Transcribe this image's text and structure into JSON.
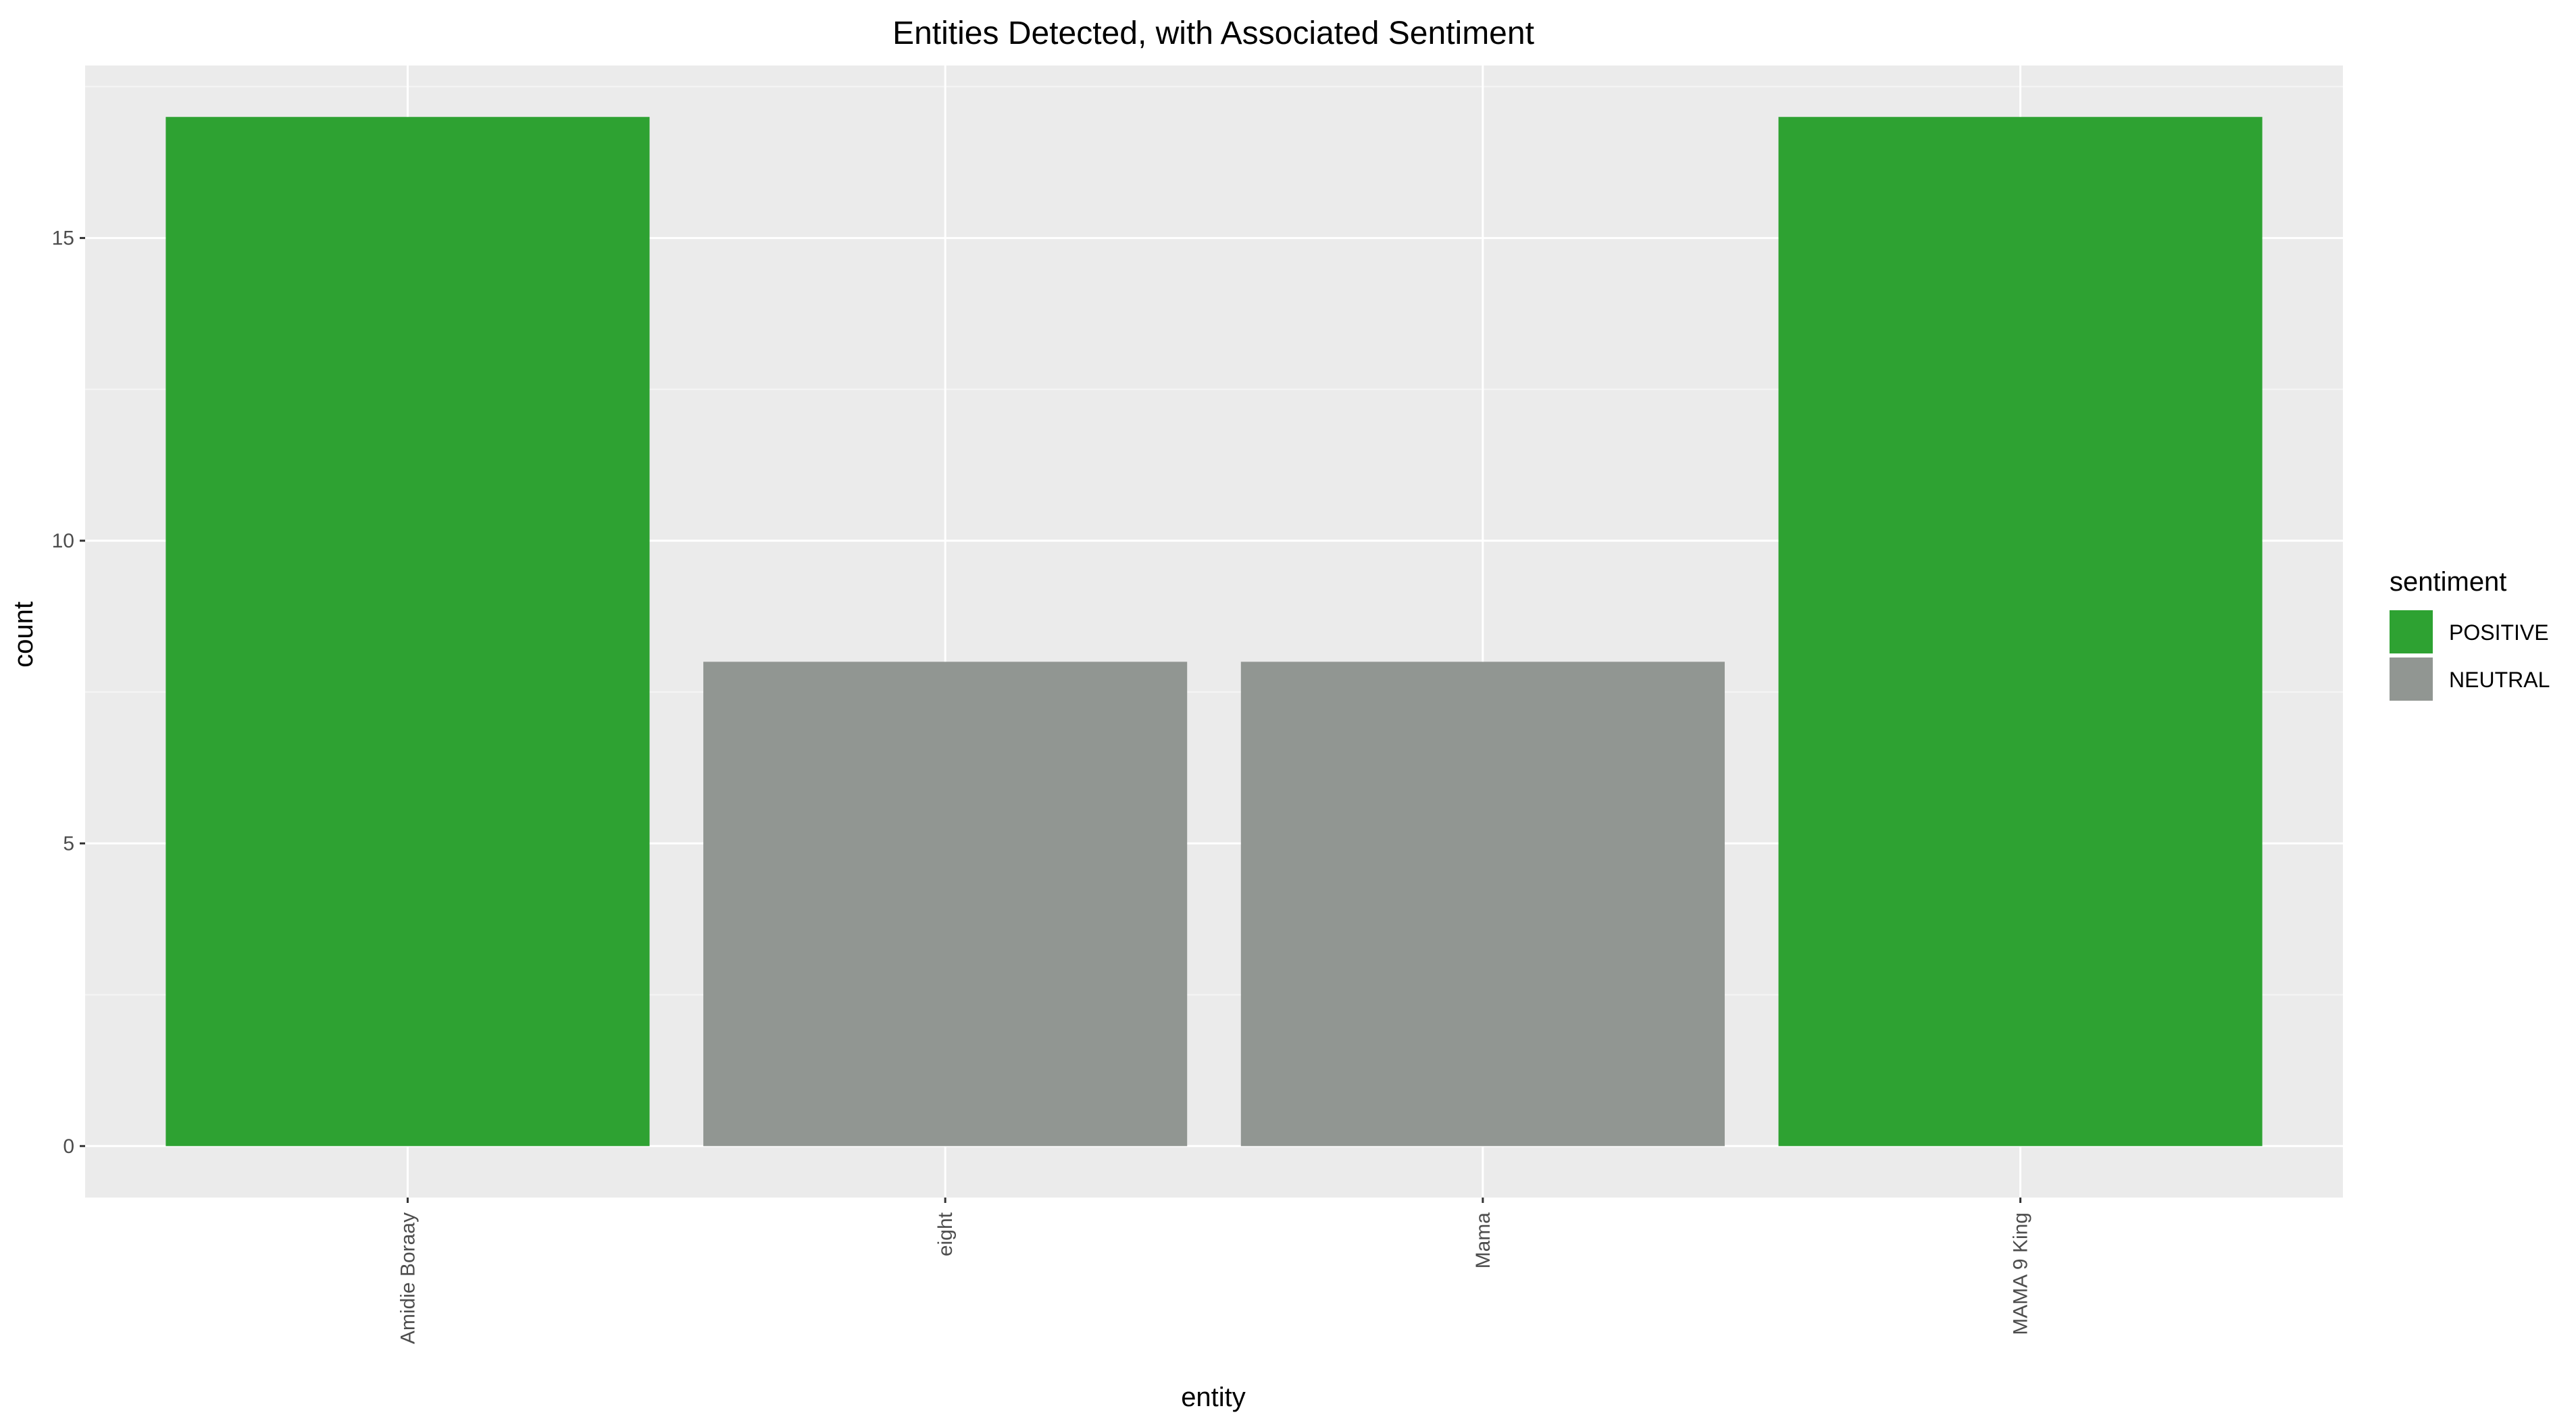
{
  "chart_data": {
    "type": "bar",
    "title": "Entities Detected, with Associated Sentiment",
    "xlabel": "entity",
    "ylabel": "count",
    "categories": [
      "Amidie Boraay",
      "eight",
      "Mama",
      "MAMA 9 King"
    ],
    "values": [
      17,
      8,
      8,
      17
    ],
    "sentiment": [
      "POSITIVE",
      "NEUTRAL",
      "NEUTRAL",
      "POSITIVE"
    ],
    "ylim": [
      -0.85,
      17.85
    ],
    "yticks": [
      0,
      5,
      10,
      15
    ],
    "ytick_labels": [
      "0",
      "5",
      "10",
      "15"
    ],
    "grid": true,
    "legend": {
      "title": "sentiment",
      "placement": "right",
      "entries": [
        {
          "label": "POSITIVE",
          "color": "#2ea232"
        },
        {
          "label": "NEUTRAL",
          "color": "#919692"
        }
      ]
    },
    "colors": {
      "POSITIVE": "#2ea232",
      "NEUTRAL": "#919692",
      "panel_background": "#ebebeb",
      "grid_major": "#ffffff",
      "grid_minor": "#f5f5f5"
    }
  }
}
